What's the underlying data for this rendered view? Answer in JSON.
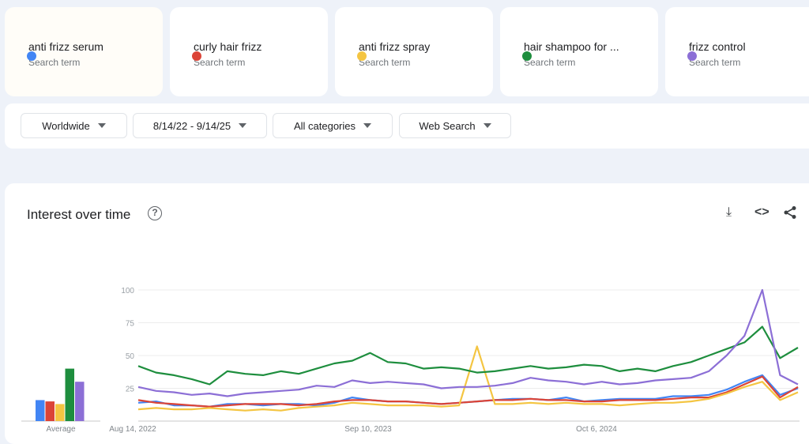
{
  "terms": [
    {
      "label": "anti frizz serum",
      "sub": "Search term",
      "color": "#4285f4"
    },
    {
      "label": "curly hair frizz",
      "sub": "Search term",
      "color": "#db4437"
    },
    {
      "label": "anti frizz spray",
      "sub": "Search term",
      "color": "#f4c542"
    },
    {
      "label": "hair shampoo for ...",
      "sub": "Search term",
      "color": "#1e8e3e"
    },
    {
      "label": "frizz control",
      "sub": "Search term",
      "color": "#8c6fd6"
    }
  ],
  "filters": {
    "region": "Worldwide",
    "dates": "8/14/22 - 9/14/25",
    "category": "All categories",
    "search_type": "Web Search"
  },
  "panel": {
    "title": "Interest over time",
    "help": "?",
    "download": "⤓",
    "embed": "<>",
    "share": "share"
  },
  "chart_data": {
    "type": "line",
    "title": "Interest over time",
    "ylim": [
      0,
      100
    ],
    "yticks": [
      "25",
      "50",
      "75",
      "100"
    ],
    "xticks": [
      "Aug 14, 2022",
      "Sep 10, 2023",
      "Oct 6, 2024"
    ],
    "average_label": "Average",
    "averages": [
      16,
      15,
      13,
      40,
      30
    ],
    "series": [
      {
        "name": "anti frizz serum",
        "color": "#4285f4",
        "values": [
          14,
          15,
          12,
          12,
          11,
          13,
          13,
          12,
          13,
          13,
          12,
          14,
          18,
          16,
          15,
          15,
          14,
          13,
          14,
          15,
          16,
          17,
          17,
          16,
          18,
          15,
          16,
          17,
          17,
          17,
          19,
          19,
          20,
          24,
          30,
          35,
          20,
          25
        ]
      },
      {
        "name": "curly hair frizz",
        "color": "#db4437",
        "values": [
          16,
          14,
          13,
          12,
          11,
          12,
          13,
          13,
          13,
          12,
          13,
          15,
          16,
          16,
          15,
          15,
          14,
          13,
          14,
          15,
          16,
          16,
          17,
          16,
          16,
          15,
          15,
          16,
          16,
          16,
          17,
          18,
          18,
          22,
          28,
          34,
          18,
          26
        ]
      },
      {
        "name": "anti frizz spray",
        "color": "#f4c542",
        "values": [
          9,
          10,
          9,
          9,
          10,
          9,
          8,
          9,
          8,
          10,
          11,
          12,
          14,
          13,
          12,
          12,
          12,
          11,
          12,
          57,
          13,
          13,
          14,
          13,
          14,
          13,
          13,
          12,
          13,
          14,
          14,
          15,
          17,
          21,
          26,
          30,
          16,
          22
        ]
      },
      {
        "name": "hair shampoo for ...",
        "color": "#1e8e3e",
        "values": [
          42,
          37,
          35,
          32,
          28,
          38,
          36,
          35,
          38,
          36,
          40,
          44,
          46,
          52,
          45,
          44,
          40,
          41,
          40,
          37,
          38,
          40,
          42,
          40,
          41,
          43,
          42,
          38,
          40,
          38,
          42,
          45,
          50,
          55,
          60,
          72,
          48,
          56
        ]
      },
      {
        "name": "frizz control",
        "color": "#8c6fd6",
        "values": [
          26,
          23,
          22,
          20,
          21,
          19,
          21,
          22,
          23,
          24,
          27,
          26,
          31,
          29,
          30,
          29,
          28,
          25,
          26,
          26,
          27,
          29,
          33,
          31,
          30,
          28,
          30,
          28,
          29,
          31,
          32,
          33,
          38,
          50,
          65,
          100,
          35,
          28
        ]
      }
    ]
  }
}
